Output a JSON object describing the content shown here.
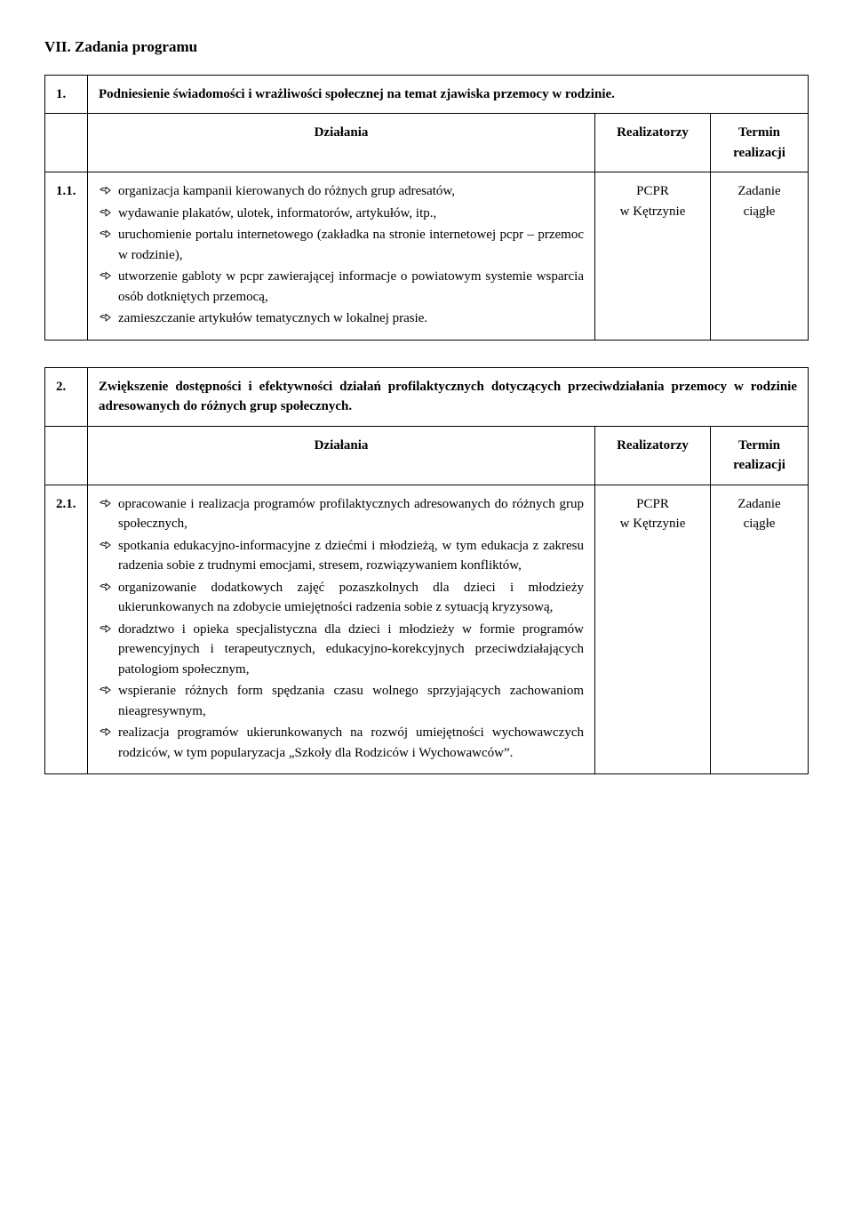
{
  "section_title": "VII. Zadania programu",
  "table1": {
    "goal_num": "1.",
    "goal_text": "Podniesienie świadomości i wrażliwości społecznej na temat zjawiska przemocy w rodzinie.",
    "headers": {
      "actions": "Działania",
      "implementers": "Realizatorzy",
      "deadline": "Termin realizacji"
    },
    "row_num": "1.1.",
    "bullets": [
      "organizacja kampanii kierowanych do różnych grup adresatów,",
      "wydawanie plakatów, ulotek, informatorów, artykułów, itp.,",
      "uruchomienie portalu internetowego (zakładka na stronie internetowej pcpr – przemoc w rodzinie),",
      "utworzenie gabloty w pcpr zawierającej informacje o powiatowym systemie wsparcia osób dotkniętych przemocą,",
      "zamieszczanie artykułów tematycznych w lokalnej prasie."
    ],
    "implementer": "PCPR w Kętrzynie",
    "deadline": "Zadanie ciągłe"
  },
  "table2": {
    "goal_num": "2.",
    "goal_text": "Zwiększenie dostępności i efektywności działań profilaktycznych dotyczących przeciwdziałania przemocy w rodzinie adresowanych do różnych grup społecznych.",
    "headers": {
      "actions": "Działania",
      "implementers": "Realizatorzy",
      "deadline": "Termin realizacji"
    },
    "row_num": "2.1.",
    "bullets": [
      "opracowanie i realizacja programów profilaktycznych adresowanych do różnych grup społecznych,",
      "spotkania edukacyjno-informacyjne z dziećmi i młodzieżą, w tym edukacja z zakresu radzenia sobie z trudnymi emocjami, stresem, rozwiązywaniem konfliktów,",
      "organizowanie dodatkowych zajęć pozaszkolnych dla dzieci i młodzieży ukierunkowanych na zdobycie umiejętności radzenia sobie z sytuacją kryzysową,",
      "doradztwo i opieka specjalistyczna dla dzieci i młodzieży w formie programów prewencyjnych i terapeutycznych, edukacyjno-korekcyjnych przeciwdziałających patologiom społecznym,",
      "wspieranie różnych form spędzania czasu wolnego sprzyjających zachowaniom nieagresywnym,",
      "realizacja programów ukierunkowanych na rozwój umiejętności wychowawczych rodziców, w tym popularyzacja „Szkoły dla Rodziców i Wychowawców”."
    ],
    "implementer": "PCPR w Kętrzynie",
    "deadline": "Zadanie ciągłe"
  },
  "style": {
    "icon_color": "#000000",
    "border_color": "#000000",
    "font_family": "Georgia, 'Times New Roman', serif",
    "body_fontsize": 15,
    "title_fontsize": 17
  }
}
